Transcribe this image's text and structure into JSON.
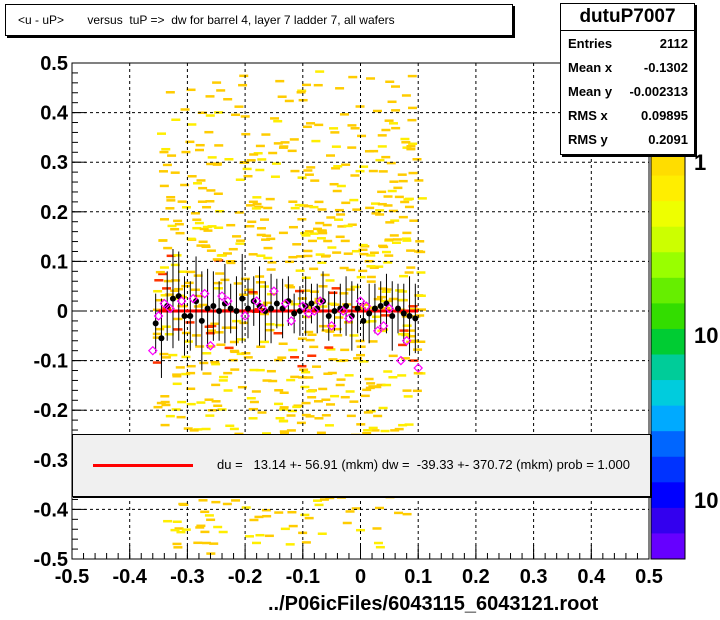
{
  "title": "<u - uP>       versus  tuP =>  dw for barrel 4, layer 7 ladder 7, all wafers",
  "stats": {
    "name": "dutuP7007",
    "rows": [
      {
        "label": "Entries",
        "value": "2112"
      },
      {
        "label": "Mean x",
        "value": "-0.1302"
      },
      {
        "label": "Mean y",
        "value": "-0.002313"
      },
      {
        "label": "RMS x",
        "value": "0.09895"
      },
      {
        "label": "RMS y",
        "value": "0.2091"
      }
    ]
  },
  "fit_text": "du =   13.14 +- 56.91 (mkm) dw =  -39.33 +- 370.72 (mkm) prob = 1.000",
  "footer": "../P06icFiles/6043115_6043121.root",
  "colors": {
    "fit_line": "#ff0000",
    "profile_points": "#000000",
    "open_markers": "#ff00ff",
    "grid": "#000000"
  },
  "chart_data": {
    "type": "heatmap",
    "xlim": [
      -0.5,
      0.5
    ],
    "ylim": [
      -0.5,
      0.5
    ],
    "x_ticks": [
      "-0.5",
      "-0.4",
      "-0.3",
      "-0.2",
      "-0.1",
      "0",
      "0.1",
      "0.2",
      "0.3",
      "0.4",
      "0.5"
    ],
    "y_ticks": [
      "-0.5",
      "-0.4",
      "-0.3",
      "-0.2",
      "-0.1",
      "0",
      "0.1",
      "0.2",
      "0.3",
      "0.4",
      "0.5"
    ],
    "grid": true,
    "palette_labels": [
      "1",
      "10",
      "10"
    ],
    "fit_line": {
      "x": [
        -0.35,
        0.1
      ],
      "y": [
        0.0,
        0.0
      ]
    },
    "profile": {
      "x": [
        -0.355,
        -0.345,
        -0.335,
        -0.325,
        -0.315,
        -0.305,
        -0.295,
        -0.285,
        -0.275,
        -0.265,
        -0.255,
        -0.245,
        -0.235,
        -0.225,
        -0.215,
        -0.205,
        -0.195,
        -0.185,
        -0.175,
        -0.165,
        -0.155,
        -0.145,
        -0.135,
        -0.125,
        -0.115,
        -0.105,
        -0.095,
        -0.085,
        -0.075,
        -0.065,
        -0.055,
        -0.045,
        -0.035,
        -0.025,
        -0.015,
        -0.005,
        0.005,
        0.015,
        0.025,
        0.035,
        0.045,
        0.055,
        0.065,
        0.075,
        0.085,
        0.095
      ],
      "y": [
        -0.025,
        -0.055,
        0.01,
        0.025,
        0.03,
        -0.01,
        -0.01,
        0.02,
        -0.02,
        0.005,
        0.01,
        0.0,
        0.015,
        0.005,
        0.0,
        0.025,
        0.005,
        0.02,
        0.01,
        0.0,
        0.005,
        0.015,
        0.005,
        0.02,
        -0.005,
        0.0,
        0.01,
        0.015,
        0.005,
        0.02,
        -0.01,
        0.0,
        0.005,
        0.01,
        -0.01,
        0.005,
        -0.02,
        -0.005,
        0.005,
        0.01,
        0.015,
        -0.01,
        0.005,
        -0.005,
        -0.01,
        -0.015
      ],
      "err": [
        0.06,
        0.08,
        0.07,
        0.1,
        0.09,
        0.08,
        0.07,
        0.09,
        0.1,
        0.08,
        0.07,
        0.06,
        0.08,
        0.05,
        0.07,
        0.09,
        0.06,
        0.05,
        0.08,
        0.06,
        0.07,
        0.05,
        0.06,
        0.05,
        0.04,
        0.05,
        0.06,
        0.04,
        0.05,
        0.06,
        0.05,
        0.04,
        0.05,
        0.06,
        0.07,
        0.05,
        0.04,
        0.06,
        0.05,
        0.05,
        0.06,
        0.07,
        0.05,
        0.06,
        0.08,
        0.07
      ]
    },
    "open_markers": {
      "x": [
        -0.36,
        -0.35,
        -0.34,
        -0.33,
        -0.31,
        -0.29,
        -0.27,
        -0.26,
        -0.24,
        -0.23,
        -0.2,
        -0.18,
        -0.17,
        -0.15,
        -0.13,
        -0.12,
        -0.1,
        -0.09,
        -0.08,
        -0.07,
        -0.05,
        -0.03,
        -0.02,
        0.0,
        0.01,
        0.03,
        0.04,
        0.05,
        0.07,
        0.08,
        0.1
      ],
      "y": [
        -0.08,
        -0.01,
        0.015,
        0.005,
        0.02,
        0.025,
        0.035,
        -0.07,
        0.03,
        0.02,
        -0.01,
        0.02,
        0.005,
        0.04,
        0.015,
        -0.02,
        0.01,
        -0.005,
        0.0,
        0.02,
        -0.03,
        0.0,
        -0.015,
        0.02,
        0.01,
        -0.04,
        -0.03,
        0.005,
        -0.1,
        -0.06,
        -0.115
      ]
    }
  }
}
